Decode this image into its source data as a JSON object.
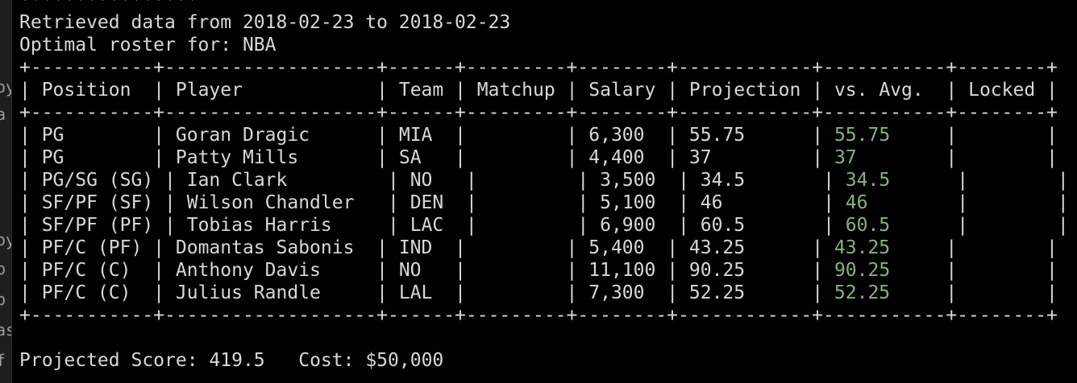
{
  "left_strip": [
    "oy",
    "a",
    "oy",
    "p",
    "p",
    "as",
    "f"
  ],
  "header": {
    "stars": "****************",
    "retrieved": "Retrieved data from 2018-02-23 to 2018-02-23",
    "roster_for": "Optimal roster for: NBA"
  },
  "table": {
    "border_line": "+-----------+-------------------+------+---------+--------+------------+-----------+--------+",
    "columns": [
      "Position",
      "Player",
      "Team",
      "Matchup",
      "Salary",
      "Projection",
      "vs. Avg.",
      "Locked"
    ],
    "rows": [
      {
        "position": "PG",
        "player": "Goran Dragic",
        "team": "MIA",
        "matchup": "",
        "salary": "6,300",
        "projection": "55.75",
        "vs_avg": "55.75",
        "locked": ""
      },
      {
        "position": "PG",
        "player": "Patty Mills",
        "team": "SA",
        "matchup": "",
        "salary": "4,400",
        "projection": "37",
        "vs_avg": "37",
        "locked": ""
      },
      {
        "position": "PG/SG (SG)",
        "player": "Ian Clark",
        "team": "NO",
        "matchup": "",
        "salary": "3,500",
        "projection": "34.5",
        "vs_avg": "34.5",
        "locked": ""
      },
      {
        "position": "SF/PF (SF)",
        "player": "Wilson Chandler",
        "team": "DEN",
        "matchup": "",
        "salary": "5,100",
        "projection": "46",
        "vs_avg": "46",
        "locked": ""
      },
      {
        "position": "SF/PF (PF)",
        "player": "Tobias Harris",
        "team": "LAC",
        "matchup": "",
        "salary": "6,900",
        "projection": "60.5",
        "vs_avg": "60.5",
        "locked": ""
      },
      {
        "position": "PF/C (PF)",
        "player": "Domantas Sabonis",
        "team": "IND",
        "matchup": "",
        "salary": "5,400",
        "projection": "43.25",
        "vs_avg": "43.25",
        "locked": ""
      },
      {
        "position": "PF/C (C)",
        "player": "Anthony Davis",
        "team": "NO",
        "matchup": "",
        "salary": "11,100",
        "projection": "90.25",
        "vs_avg": "90.25",
        "locked": ""
      },
      {
        "position": "PF/C (C)",
        "player": "Julius Randle",
        "team": "LAL",
        "matchup": "",
        "salary": "7,300",
        "projection": "52.25",
        "vs_avg": "52.25",
        "locked": ""
      }
    ]
  },
  "footer": {
    "score_label": "Projected Score:",
    "score": "419.5",
    "cost_label": "Cost:",
    "cost": "$50,000"
  },
  "colors": {
    "background": "#000000",
    "text": "#d8d8d8",
    "vs_avg": "#86b27e"
  }
}
